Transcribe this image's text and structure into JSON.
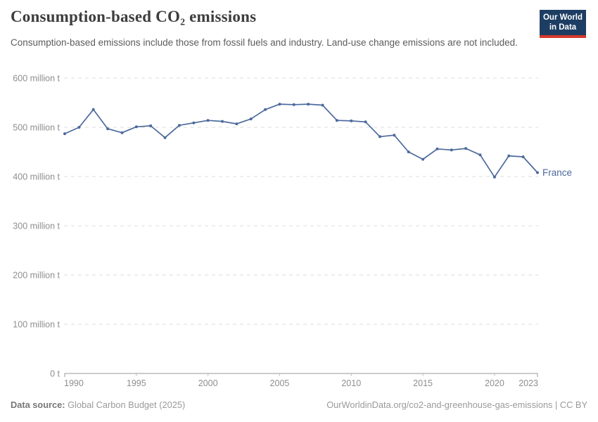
{
  "header": {
    "title": "Consumption-based CO₂ emissions",
    "subtitle": "Consumption-based emissions include those from fossil fuels and industry. Land-use change emissions are not included.",
    "logo": {
      "line1": "Our World",
      "line2": "in Data",
      "background_color": "#1d3d63",
      "accent_color": "#d33a2b"
    }
  },
  "chart_data": {
    "type": "line",
    "title": "Consumption-based CO₂ emissions",
    "xlabel": "",
    "ylabel": "",
    "unit": "million t",
    "xlim": [
      1990,
      2023
    ],
    "ylim": [
      0,
      600
    ],
    "grid": "horizontal dashed",
    "legend_position": "end-of-line label",
    "x_ticks": [
      1990,
      1995,
      2000,
      2005,
      2010,
      2015,
      2020,
      2023
    ],
    "y_ticks": [
      0,
      100,
      200,
      300,
      400,
      500,
      600
    ],
    "y_tick_labels": [
      "0 t",
      "100 million t",
      "200 million t",
      "300 million t",
      "400 million t",
      "500 million t",
      "600 million t"
    ],
    "series": [
      {
        "name": "France",
        "color": "#4c6a9c",
        "x": [
          1990,
          1991,
          1992,
          1993,
          1994,
          1995,
          1996,
          1997,
          1998,
          1999,
          2000,
          2001,
          2002,
          2003,
          2004,
          2005,
          2006,
          2007,
          2008,
          2009,
          2010,
          2011,
          2012,
          2013,
          2014,
          2015,
          2016,
          2017,
          2018,
          2019,
          2020,
          2021,
          2022,
          2023
        ],
        "values": [
          487,
          500,
          536,
          497,
          489,
          501,
          503,
          479,
          504,
          509,
          514,
          512,
          507,
          517,
          536,
          547,
          546,
          547,
          545,
          514,
          513,
          511,
          481,
          484,
          450,
          435,
          456,
          454,
          457,
          444,
          399,
          442,
          440,
          408
        ]
      }
    ],
    "style": {
      "gridline_color": "#dcdcdc",
      "axis_color": "#999999",
      "tick_label_color": "#8e8e8e"
    }
  },
  "footer": {
    "source_label": "Data source:",
    "source_value": "Global Carbon Budget (2025)",
    "link": "OurWorldinData.org/co2-and-greenhouse-gas-emissions | CC BY"
  }
}
